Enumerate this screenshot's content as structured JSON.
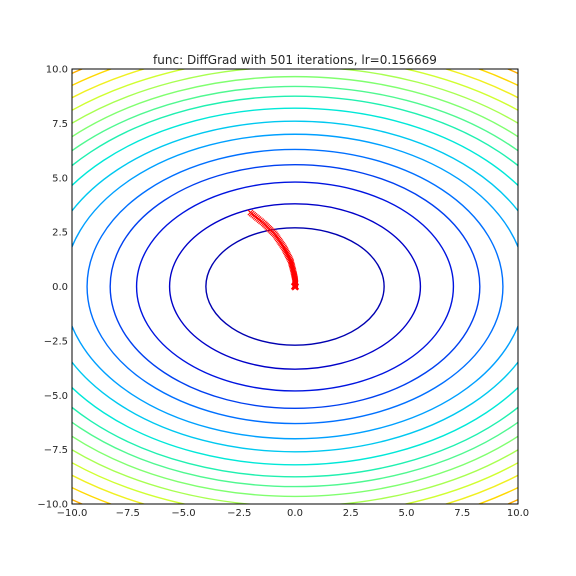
{
  "chart_data": {
    "type": "line",
    "title": "func: DiffGrad with 501 iterations, lr=0.156669",
    "xlabel": "",
    "ylabel": "",
    "xlim": [
      -10,
      10
    ],
    "ylim": [
      -10,
      10
    ],
    "x_ticks": [
      "−10.0",
      "−7.5",
      "−5.0",
      "−2.5",
      "0.0",
      "2.5",
      "5.0",
      "7.5",
      "10.0"
    ],
    "y_ticks": [
      "10.0",
      "7.5",
      "5.0",
      "2.5",
      "0.0",
      "−2.5",
      "−5.0",
      "−7.5",
      "−10.0"
    ],
    "x_tick_values": [
      -10,
      -7.5,
      -5,
      -2.5,
      0,
      2.5,
      5,
      7.5,
      10
    ],
    "y_tick_values": [
      10,
      7.5,
      5,
      2.5,
      0,
      -2.5,
      -5,
      -7.5,
      -10
    ],
    "grid": false,
    "contours": {
      "function_form": "x^2/(a^2) + y^2/(b^2) = level",
      "x_radius_ratio": 1.48,
      "radii_y": [
        2.7,
        3.8,
        4.8,
        5.6,
        6.3,
        7.0,
        7.6,
        8.2,
        8.75,
        9.2,
        9.65,
        10.1,
        10.55,
        11.0,
        11.45,
        11.9,
        12.35,
        12.8,
        13.25,
        13.7,
        14.15,
        14.6
      ],
      "colors": [
        "#0000b0",
        "#0000c8",
        "#0014e0",
        "#0040f0",
        "#0070ff",
        "#00a0ff",
        "#00c8f0",
        "#00e8d8",
        "#20f0b0",
        "#50f890",
        "#80ff70",
        "#a8ff50",
        "#d0ff30",
        "#f0f020",
        "#ffd800",
        "#ffb000",
        "#ff8800",
        "#ff6000",
        "#ff3800",
        "#f01000",
        "#d00000",
        "#a00000"
      ]
    },
    "path": {
      "name": "",
      "color": "#ff0000",
      "marker": "x",
      "points": [
        [
          -2.0,
          3.4
        ],
        [
          -1.7,
          3.15
        ],
        [
          -1.4,
          2.9
        ],
        [
          -1.15,
          2.65
        ],
        [
          -0.9,
          2.4
        ],
        [
          -0.7,
          2.1
        ],
        [
          -0.5,
          1.8
        ],
        [
          -0.35,
          1.5
        ],
        [
          -0.2,
          1.2
        ],
        [
          -0.12,
          0.9
        ],
        [
          -0.05,
          0.6
        ],
        [
          0.0,
          0.35
        ],
        [
          0.02,
          0.15
        ],
        [
          0.0,
          0.05
        ],
        [
          -0.05,
          0.0
        ],
        [
          0.05,
          0.0
        ],
        [
          0.0,
          -0.05
        ]
      ]
    }
  },
  "figure": {
    "background": "#ffffff",
    "axes_edge": "#000000"
  }
}
